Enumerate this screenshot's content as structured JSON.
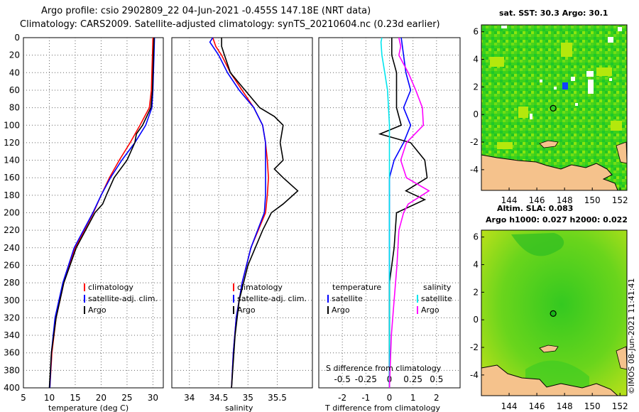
{
  "header": {
    "line1": "Argo profile: csio 2902809_22 04-Jun-2021 -0.455S 147.18E (NRT data)",
    "line2": "Climatology: CARS2009. Satellite-adjusted climatology: synTS_20210604.nc (0.23d earlier)"
  },
  "colors": {
    "climatology": "#ff0000",
    "satellite": "#0000ff",
    "argo": "#000000",
    "salinity_diff": "#ff00ff",
    "salinity_sat": "#00e5ee",
    "land": "#f5c28c"
  },
  "watermark": "©IMOS 08-Jun-2021 11:41:41",
  "chart_data": [
    {
      "type": "line",
      "name": "temperature-profile",
      "xlabel": "temperature (deg C)",
      "ylabel": "",
      "xlim": [
        5,
        32
      ],
      "ylim": [
        400,
        0
      ],
      "xticks": [
        5,
        10,
        15,
        20,
        25,
        30
      ],
      "yticks": [
        0,
        20,
        40,
        60,
        80,
        100,
        120,
        140,
        160,
        180,
        200,
        220,
        240,
        260,
        280,
        300,
        320,
        340,
        360,
        380,
        400
      ],
      "grid": true,
      "legend": [
        "climatology",
        "satellite-adj. clim.",
        "Argo"
      ],
      "series": [
        {
          "name": "climatology",
          "color": "#ff0000",
          "depth": [
            0,
            20,
            40,
            60,
            80,
            100,
            120,
            140,
            160,
            180,
            200,
            240,
            280,
            320,
            360,
            400
          ],
          "values": [
            30.0,
            29.9,
            29.8,
            29.7,
            29.3,
            27.5,
            25.6,
            23.5,
            21.6,
            20.0,
            18.5,
            15.0,
            12.8,
            11.3,
            10.5,
            10.1
          ]
        },
        {
          "name": "satellite-adj. clim.",
          "color": "#0000ff",
          "depth": [
            0,
            20,
            40,
            60,
            80,
            100,
            120,
            140,
            160,
            180,
            200,
            240,
            280,
            320,
            360,
            400
          ],
          "values": [
            30.3,
            30.2,
            30.1,
            30.0,
            29.8,
            28.6,
            26.5,
            24.0,
            21.8,
            20.0,
            18.4,
            14.8,
            12.6,
            11.1,
            10.4,
            10.1
          ]
        },
        {
          "name": "Argo",
          "color": "#000000",
          "depth": [
            0,
            20,
            40,
            60,
            80,
            100,
            110,
            120,
            140,
            160,
            180,
            190,
            200,
            240,
            280,
            320,
            360,
            400
          ],
          "values": [
            30.2,
            30.1,
            30.0,
            29.9,
            29.6,
            28.0,
            26.8,
            26.5,
            25.0,
            22.5,
            21.0,
            20.3,
            18.8,
            15.2,
            12.8,
            11.3,
            10.4,
            10.0
          ]
        }
      ]
    },
    {
      "type": "line",
      "name": "salinity-profile",
      "xlabel": "salinity",
      "xlim": [
        33.7,
        36.1
      ],
      "ylim": [
        400,
        0
      ],
      "xticks": [
        34,
        34.5,
        35,
        35.5
      ],
      "grid": true,
      "legend": [
        "climatology",
        "satellite-adj. clim.",
        "Argo"
      ],
      "series": [
        {
          "name": "climatology",
          "color": "#ff0000",
          "depth": [
            0,
            10,
            20,
            40,
            60,
            80,
            100,
            120,
            140,
            160,
            180,
            200,
            240,
            280,
            320,
            360,
            400
          ],
          "values": [
            34.4,
            34.45,
            34.55,
            34.7,
            34.9,
            35.1,
            35.25,
            35.3,
            35.33,
            35.35,
            35.33,
            35.3,
            35.05,
            34.9,
            34.8,
            34.75,
            34.72
          ]
        },
        {
          "name": "satellite-adj. clim.",
          "color": "#0000ff",
          "depth": [
            0,
            5,
            10,
            20,
            40,
            60,
            80,
            100,
            120,
            140,
            160,
            180,
            200,
            240,
            280,
            320,
            360,
            400
          ],
          "values": [
            34.4,
            34.35,
            34.4,
            34.5,
            34.65,
            34.85,
            35.1,
            35.25,
            35.3,
            35.3,
            35.3,
            35.3,
            35.28,
            35.05,
            34.9,
            34.8,
            34.75,
            34.72
          ]
        },
        {
          "name": "Argo",
          "color": "#000000",
          "depth": [
            0,
            10,
            20,
            40,
            60,
            80,
            90,
            100,
            120,
            140,
            150,
            160,
            175,
            190,
            200,
            220,
            260,
            300,
            340,
            400
          ],
          "values": [
            34.55,
            34.55,
            34.6,
            34.7,
            34.95,
            35.2,
            35.45,
            35.6,
            35.55,
            35.6,
            35.45,
            35.6,
            35.85,
            35.6,
            35.4,
            35.25,
            35.0,
            34.85,
            34.78,
            34.72
          ]
        }
      ]
    },
    {
      "type": "line",
      "name": "difference-profile",
      "xlabel": "T difference from climatology",
      "xlabel_top": "S difference from climatology",
      "xlim": [
        -3,
        3
      ],
      "xticks": [
        -2,
        -1,
        0,
        1,
        2
      ],
      "sxlim": [
        -0.75,
        0.75
      ],
      "sxticks": [
        -0.5,
        -0.25,
        0,
        0.25,
        0.5
      ],
      "sxtick_labels": [
        "-0.5",
        "-0.25",
        "0",
        "0.25",
        "0.5"
      ],
      "ylim": [
        400,
        0
      ],
      "grid": true,
      "legend_temperature_title": "temperature",
      "legend_salinity_title": "salinity",
      "legend_temperature": [
        "satellite",
        "Argo"
      ],
      "legend_salinity": [
        "satellite",
        "Argo"
      ],
      "series": [
        {
          "name": "temperature satellite",
          "color": "#0000ff",
          "axis": "T",
          "depth": [
            0,
            20,
            40,
            60,
            80,
            100,
            120,
            140,
            160,
            180,
            200,
            240,
            280,
            320,
            360,
            400
          ],
          "values": [
            0.5,
            0.6,
            0.7,
            0.9,
            0.6,
            0.9,
            0.6,
            0.2,
            0.0,
            0.0,
            0.0,
            0.0,
            0.0,
            0.0,
            0.0,
            0.0
          ]
        },
        {
          "name": "temperature Argo",
          "color": "#000000",
          "axis": "T",
          "depth": [
            0,
            20,
            40,
            60,
            80,
            100,
            110,
            120,
            140,
            160,
            175,
            185,
            200,
            240,
            280,
            320,
            360,
            400
          ],
          "values": [
            0.1,
            0.1,
            0.3,
            0.3,
            0.3,
            0.5,
            -0.4,
            0.9,
            1.5,
            1.6,
            0.7,
            1.5,
            0.3,
            0.2,
            0.0,
            0.0,
            0.0,
            0.0
          ]
        },
        {
          "name": "salinity satellite",
          "color": "#00e5ee",
          "axis": "S",
          "depth": [
            0,
            5,
            20,
            40,
            60,
            80,
            100,
            140,
            200,
            260,
            320,
            400
          ],
          "values": [
            -0.08,
            -0.09,
            -0.08,
            -0.05,
            -0.02,
            -0.01,
            0.0,
            0.0,
            0.0,
            0.0,
            0.0,
            0.0
          ]
        },
        {
          "name": "salinity Argo",
          "color": "#ff00ff",
          "axis": "S",
          "depth": [
            0,
            10,
            20,
            40,
            60,
            80,
            100,
            120,
            140,
            160,
            175,
            190,
            200,
            220,
            260,
            300,
            340,
            400
          ],
          "values": [
            0.1,
            0.12,
            0.1,
            0.2,
            0.28,
            0.35,
            0.36,
            0.18,
            0.12,
            0.18,
            0.42,
            0.2,
            0.15,
            0.1,
            0.08,
            0.05,
            0.02,
            0.0
          ]
        }
      ]
    },
    {
      "type": "heatmap",
      "name": "sst-map",
      "title": "sat. SST: 30.3 Argo: 30.1",
      "xlim": [
        142,
        152.5
      ],
      "ylim": [
        -5.5,
        6.5
      ],
      "xticks": [
        144,
        146,
        148,
        150,
        152
      ],
      "yticks": [
        -4,
        -2,
        0,
        2,
        4,
        6
      ],
      "marker": {
        "lon": 147.18,
        "lat": 0.455
      }
    },
    {
      "type": "heatmap",
      "name": "sla-map",
      "title": "Altim. SLA: 0.083",
      "subtitle": "Argo h1000: 0.027 h2000: 0.022",
      "xlim": [
        142,
        152.5
      ],
      "ylim": [
        -5.5,
        6.5
      ],
      "xticks": [
        144,
        146,
        148,
        150,
        152
      ],
      "yticks": [
        -4,
        -2,
        0,
        2,
        4,
        6
      ],
      "marker": {
        "lon": 147.18,
        "lat": 0.455
      }
    }
  ]
}
